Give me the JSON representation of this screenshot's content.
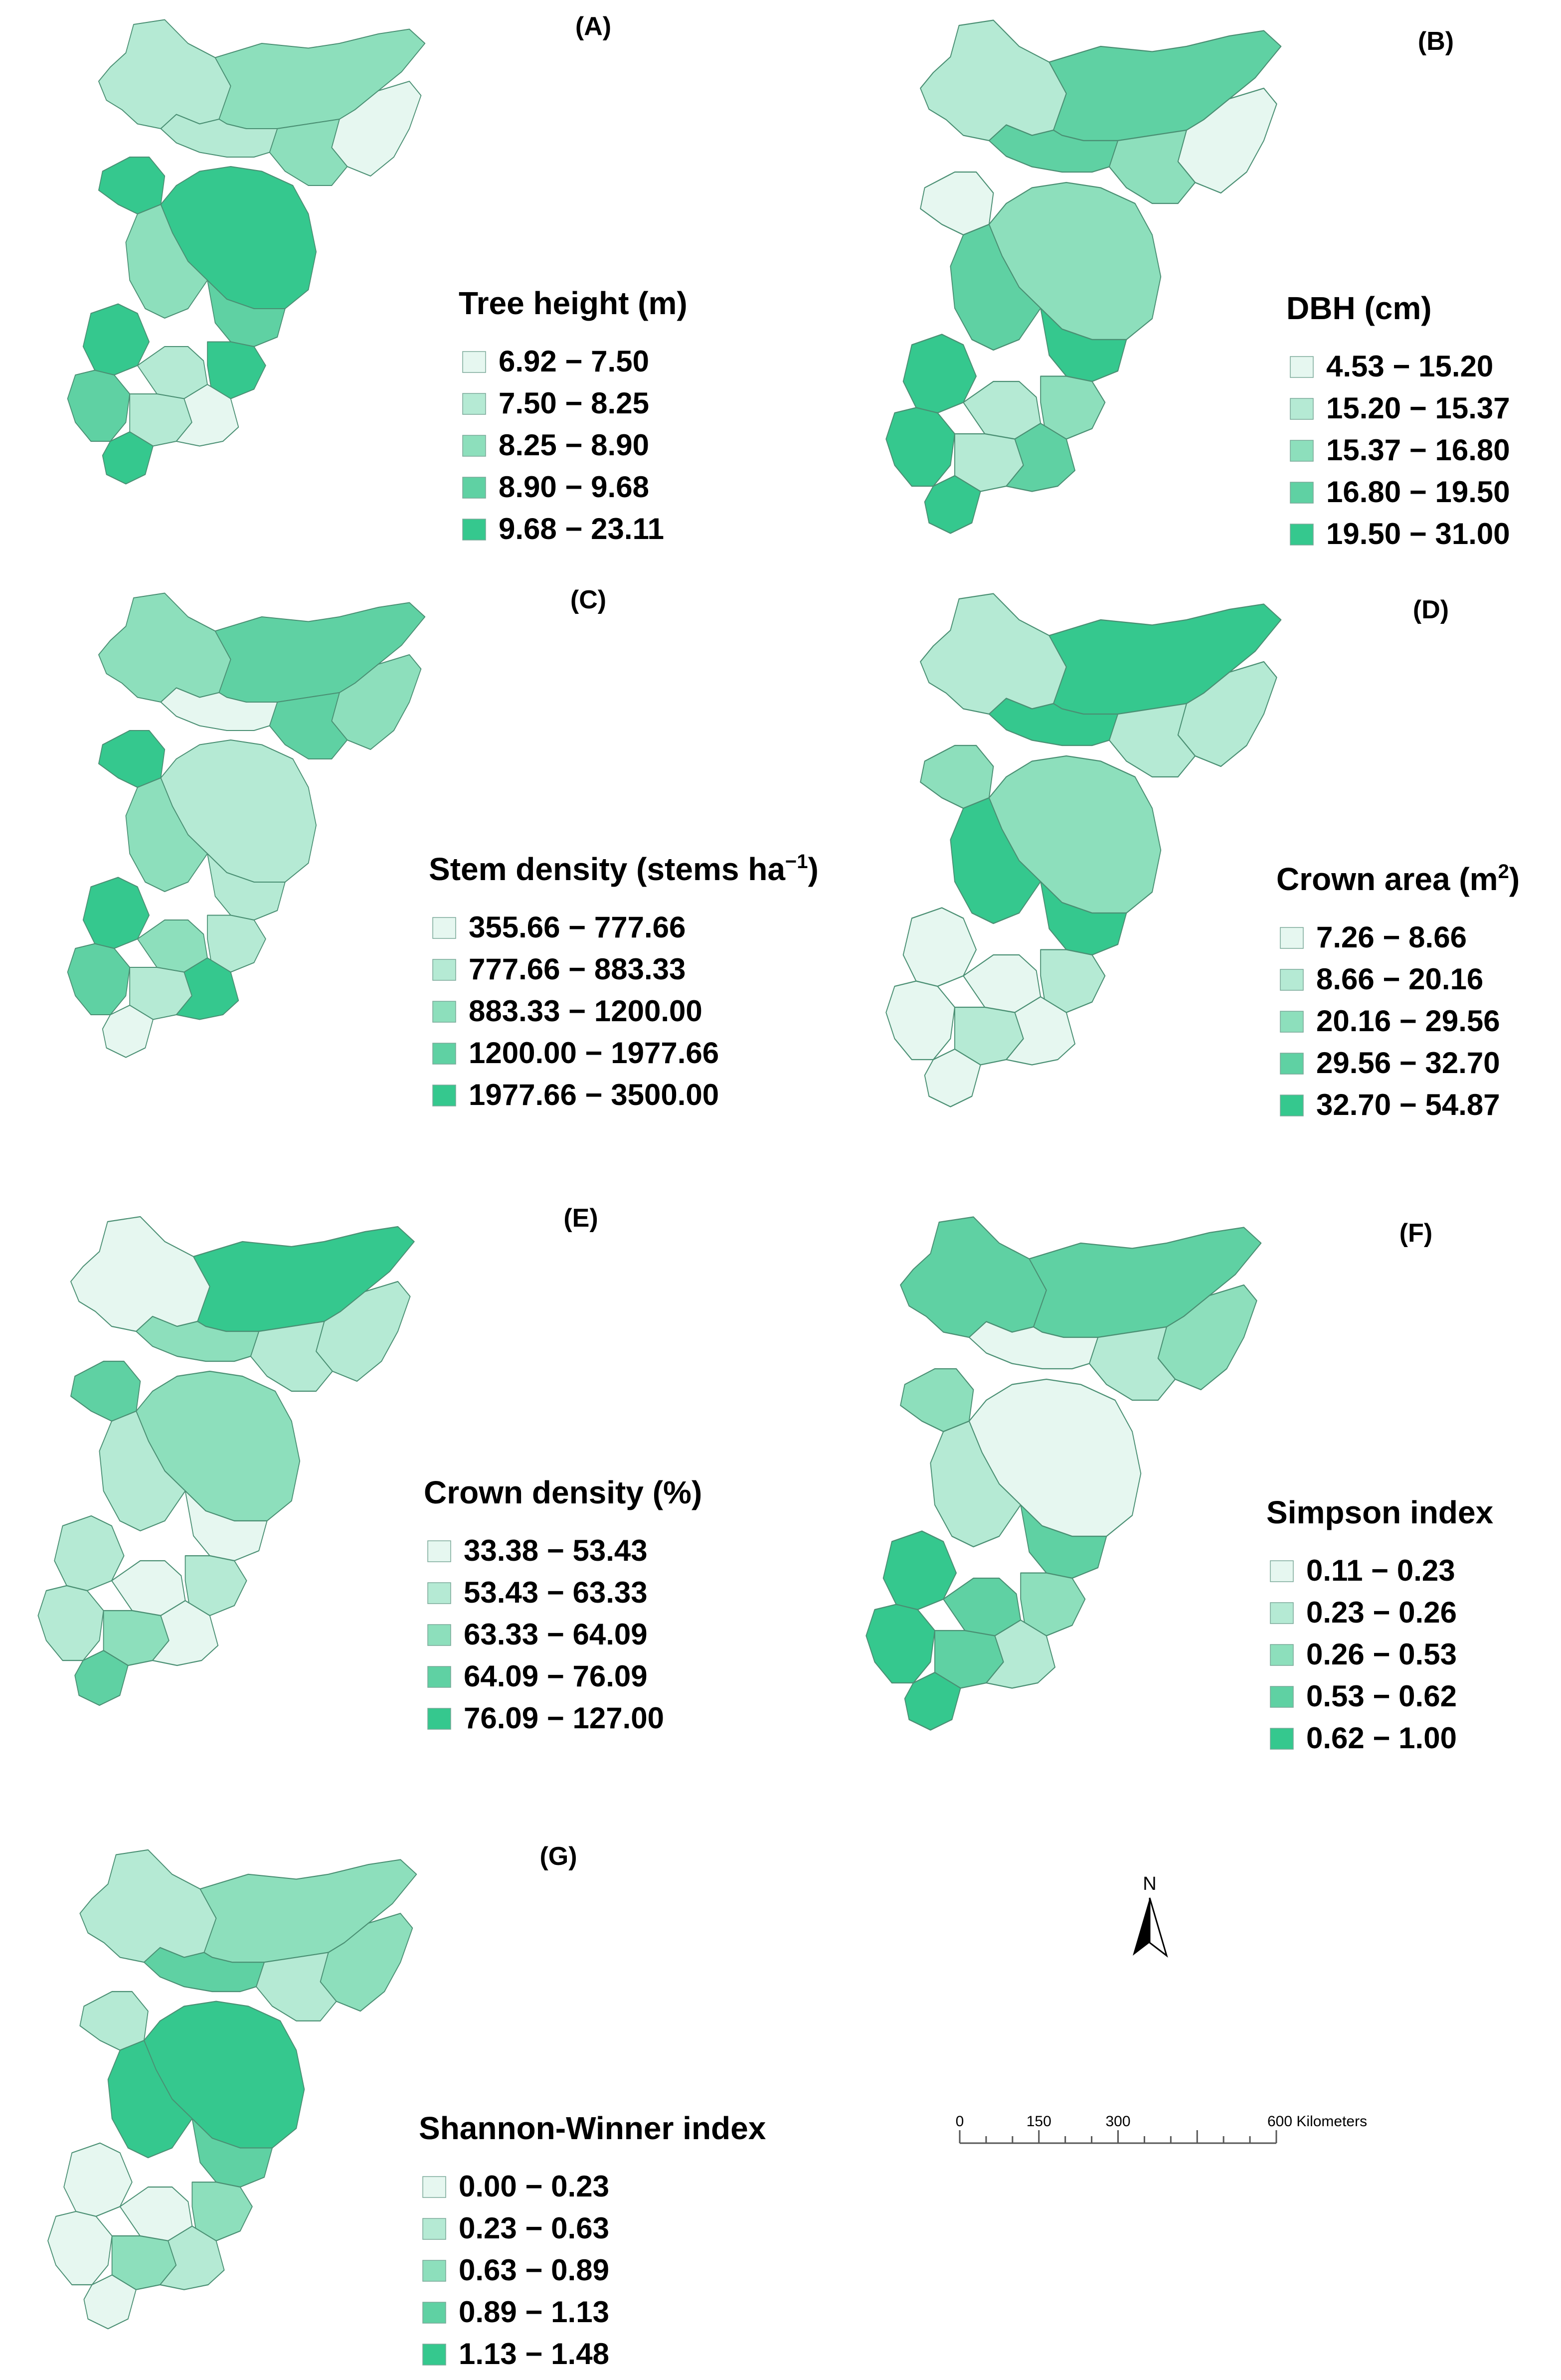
{
  "colors": {
    "class1": "#e6f7f0",
    "class2": "#b5ead4",
    "class3": "#8ddfbc",
    "class4": "#5fd1a3",
    "class5": "#35c88e",
    "boundary": "#4a8f73",
    "swatch_border": "#7aa898"
  },
  "panels": [
    {
      "id": "A",
      "label": "(A)",
      "legend_title": "Tree height (m)",
      "legend_title_sup": "",
      "legend_title_suffix": "",
      "classes": [
        "6.92 − 7.50",
        "7.50 − 8.25",
        "8.25 − 8.90",
        "8.90 − 9.68",
        "9.68 − 23.11"
      ]
    },
    {
      "id": "B",
      "label": "(B)",
      "legend_title": "DBH (cm)",
      "legend_title_sup": "",
      "legend_title_suffix": "",
      "classes": [
        "4.53 − 15.20",
        "15.20 − 15.37",
        "15.37 − 16.80",
        "16.80 − 19.50",
        "19.50 − 31.00"
      ]
    },
    {
      "id": "C",
      "label": "(C)",
      "legend_title": "Stem density (stems ha",
      "legend_title_sup": "−1",
      "legend_title_suffix": ")",
      "classes": [
        "355.66 − 777.66",
        "777.66 − 883.33",
        "883.33 − 1200.00",
        "1200.00 − 1977.66",
        "1977.66 − 3500.00"
      ]
    },
    {
      "id": "D",
      "label": "(D)",
      "legend_title": "Crown area (m",
      "legend_title_sup": "2",
      "legend_title_suffix": ")",
      "classes": [
        "7.26 − 8.66",
        "8.66 − 20.16",
        "20.16 − 29.56",
        "29.56 − 32.70",
        "32.70 − 54.87"
      ]
    },
    {
      "id": "E",
      "label": "(E)",
      "legend_title": "Crown density (%)",
      "legend_title_sup": "",
      "legend_title_suffix": "",
      "classes": [
        "33.38 − 53.43",
        "53.43 − 63.33",
        "63.33 − 64.09",
        "64.09 − 76.09",
        "76.09 − 127.00"
      ]
    },
    {
      "id": "F",
      "label": "(F)",
      "legend_title": "Simpson index",
      "legend_title_sup": "",
      "legend_title_suffix": "",
      "classes": [
        "0.11 − 0.23",
        "0.23 − 0.26",
        "0.26 − 0.53",
        "0.53 − 0.62",
        "0.62 − 1.00"
      ]
    },
    {
      "id": "G",
      "label": "(G)",
      "legend_title": "Shannon-Winner index",
      "legend_title_sup": "",
      "legend_title_suffix": "",
      "classes": [
        "0.00 − 0.23",
        "0.23 − 0.63",
        "0.63 − 0.89",
        "0.89 − 1.13",
        "1.13 − 1.48"
      ]
    }
  ],
  "north_arrow": {
    "label": "N"
  },
  "scale_bar": {
    "tick_values": [
      0,
      150,
      300,
      600
    ],
    "labels": [
      "0",
      "150",
      "300",
      "600 Kilometers"
    ]
  }
}
